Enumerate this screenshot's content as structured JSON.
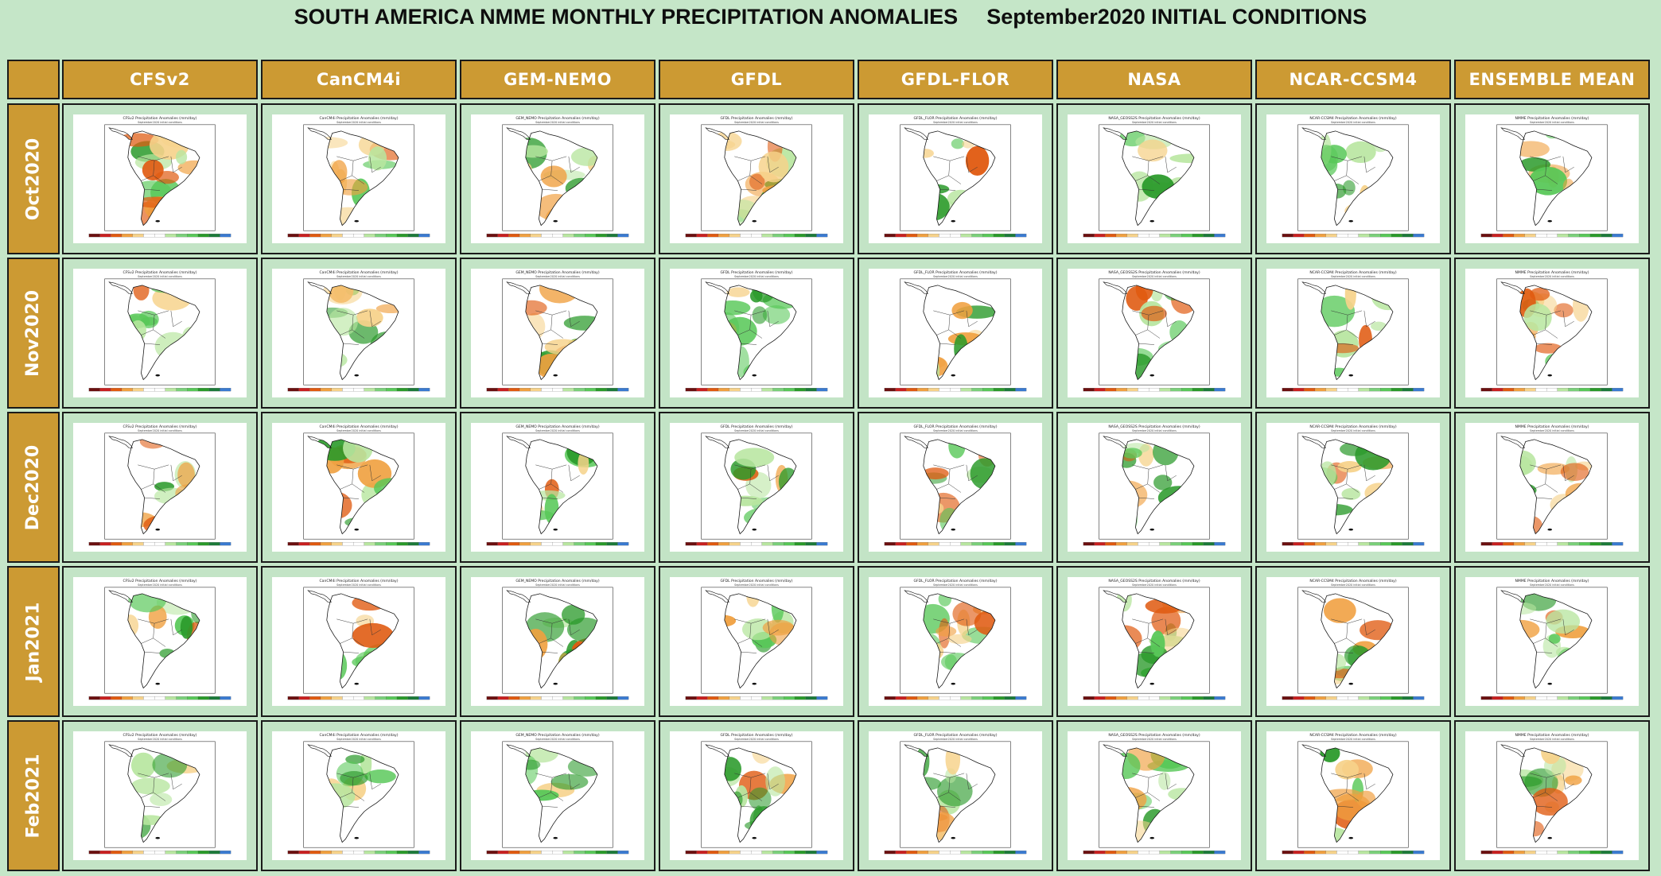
{
  "page_title": "SOUTH AMERICA NMME MONTHLY PRECIPITATION ANOMALIES",
  "initial_conditions": "September2020 INITIAL CONDITIONS",
  "models": [
    {
      "label": "CFSv2",
      "caption": "CFSv2 Precipitation Anomalies (mm/day)"
    },
    {
      "label": "CanCM4i",
      "caption": "CanCM4i Precipitation Anomalies (mm/day)"
    },
    {
      "label": "GEM-NEMO",
      "caption": "GEM_NEMO Precipitation Anomalies (mm/day)"
    },
    {
      "label": "GFDL",
      "caption": "GFDL Precipitation Anomalies (mm/day)"
    },
    {
      "label": "GFDL-FLOR",
      "caption": "GFDL_FLOR Precipitation Anomalies (mm/day)"
    },
    {
      "label": "NASA",
      "caption": "NASA_GEOSS2S Precipitation Anomalies (mm/day)"
    },
    {
      "label": "NCAR-CCSM4",
      "caption": "NCAR-CCSM4 Precipitation Anomalies (mm/day)"
    },
    {
      "label": "ENSEMBLE MEAN",
      "caption": "NMME Precipitation Anomalies (mm/day)"
    }
  ],
  "months": [
    "Oct2020",
    "Nov2020",
    "Dec2020",
    "Jan2021",
    "Feb2021"
  ],
  "map_subtitle": "September2020 initial conditions",
  "colors": {
    "background": "#c5e6c8",
    "header": "#cc9a33",
    "dry_strong": "#e05a10",
    "dry": "#f0a040",
    "dry_light": "#f6d28a",
    "wet_light": "#b8e6a0",
    "wet": "#58c858",
    "wet_strong": "#2a9a2a"
  }
}
